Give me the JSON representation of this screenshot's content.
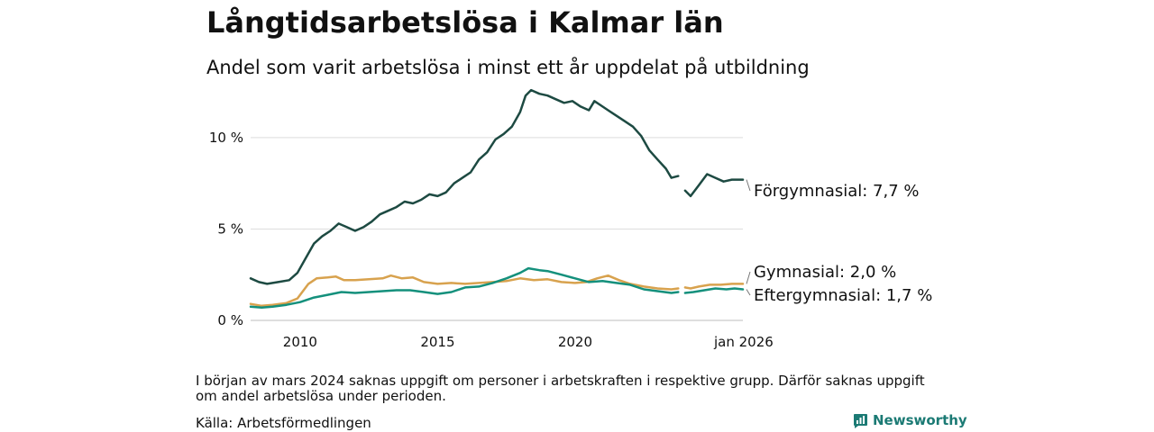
{
  "title": "Långtidsarbetslösa i Kalmar län",
  "subtitle": "Andel som varit arbetslösa i minst ett år uppdelat på utbildning",
  "note": "I början av mars 2024 saknas uppgift om personer i arbetskraften i respektive grupp. Därför saknas uppgift om andel arbetslösa under perioden.",
  "source": "Källa: Arbetsförmedlingen",
  "brand": "Newsworthy",
  "icons": {
    "brand": "newsworthy-logo-icon"
  },
  "chart_data": {
    "type": "line",
    "title": "Långtidsarbetslösa i Kalmar län",
    "xlabel": "",
    "ylabel": "",
    "xlim": [
      2008.2,
      2026.1
    ],
    "ylim": [
      0,
      13
    ],
    "y_ticks": [
      {
        "value": 0,
        "label": "0 %"
      },
      {
        "value": 5,
        "label": "5 %"
      },
      {
        "value": 10,
        "label": "10 %"
      }
    ],
    "x_ticks": [
      {
        "value": 2010,
        "label": "2010"
      },
      {
        "value": 2015,
        "label": "2015"
      },
      {
        "value": 2020,
        "label": "2020"
      },
      {
        "value": 2026.1,
        "label": "jan 2026"
      }
    ],
    "grid": true,
    "gap": [
      2023.75,
      2024.0
    ],
    "series": [
      {
        "name": "Förgymnasial",
        "label": "Förgymnasial: 7,7 %",
        "color": "#1d4a42",
        "points": [
          [
            2008.2,
            2.3
          ],
          [
            2008.5,
            2.1
          ],
          [
            2008.8,
            2.0
          ],
          [
            2009.2,
            2.1
          ],
          [
            2009.6,
            2.2
          ],
          [
            2009.9,
            2.6
          ],
          [
            2010.2,
            3.4
          ],
          [
            2010.5,
            4.2
          ],
          [
            2010.8,
            4.6
          ],
          [
            2011.1,
            4.9
          ],
          [
            2011.4,
            5.3
          ],
          [
            2011.7,
            5.1
          ],
          [
            2012.0,
            4.9
          ],
          [
            2012.3,
            5.1
          ],
          [
            2012.6,
            5.4
          ],
          [
            2012.9,
            5.8
          ],
          [
            2013.2,
            6.0
          ],
          [
            2013.5,
            6.2
          ],
          [
            2013.8,
            6.5
          ],
          [
            2014.1,
            6.4
          ],
          [
            2014.4,
            6.6
          ],
          [
            2014.7,
            6.9
          ],
          [
            2015.0,
            6.8
          ],
          [
            2015.3,
            7.0
          ],
          [
            2015.6,
            7.5
          ],
          [
            2015.9,
            7.8
          ],
          [
            2016.2,
            8.1
          ],
          [
            2016.5,
            8.8
          ],
          [
            2016.8,
            9.2
          ],
          [
            2017.1,
            9.9
          ],
          [
            2017.4,
            10.2
          ],
          [
            2017.7,
            10.6
          ],
          [
            2018.0,
            11.4
          ],
          [
            2018.2,
            12.3
          ],
          [
            2018.4,
            12.6
          ],
          [
            2018.7,
            12.4
          ],
          [
            2019.0,
            12.3
          ],
          [
            2019.3,
            12.1
          ],
          [
            2019.6,
            11.9
          ],
          [
            2019.9,
            12.0
          ],
          [
            2020.2,
            11.7
          ],
          [
            2020.5,
            11.5
          ],
          [
            2020.7,
            12.0
          ],
          [
            2020.9,
            11.8
          ],
          [
            2021.2,
            11.5
          ],
          [
            2021.5,
            11.2
          ],
          [
            2021.8,
            10.9
          ],
          [
            2022.1,
            10.6
          ],
          [
            2022.4,
            10.1
          ],
          [
            2022.7,
            9.3
          ],
          [
            2023.0,
            8.8
          ],
          [
            2023.3,
            8.3
          ],
          [
            2023.5,
            7.8
          ],
          [
            2023.75,
            7.9
          ],
          null,
          [
            2024.0,
            7.1
          ],
          [
            2024.2,
            6.8
          ],
          [
            2024.5,
            7.4
          ],
          [
            2024.8,
            8.0
          ],
          [
            2025.1,
            7.8
          ],
          [
            2025.4,
            7.6
          ],
          [
            2025.7,
            7.7
          ],
          [
            2026.1,
            7.7
          ]
        ]
      },
      {
        "name": "Gymnasial",
        "label": "Gymnasial: 2,0 %",
        "color": "#d8a24e",
        "points": [
          [
            2008.2,
            0.9
          ],
          [
            2008.6,
            0.8
          ],
          [
            2009.0,
            0.85
          ],
          [
            2009.5,
            0.95
          ],
          [
            2009.9,
            1.2
          ],
          [
            2010.3,
            2.0
          ],
          [
            2010.6,
            2.3
          ],
          [
            2011.0,
            2.35
          ],
          [
            2011.3,
            2.4
          ],
          [
            2011.6,
            2.2
          ],
          [
            2012.0,
            2.2
          ],
          [
            2012.5,
            2.25
          ],
          [
            2013.0,
            2.3
          ],
          [
            2013.3,
            2.45
          ],
          [
            2013.7,
            2.3
          ],
          [
            2014.1,
            2.35
          ],
          [
            2014.5,
            2.1
          ],
          [
            2015.0,
            2.0
          ],
          [
            2015.5,
            2.05
          ],
          [
            2016.0,
            2.0
          ],
          [
            2016.5,
            2.05
          ],
          [
            2017.0,
            2.1
          ],
          [
            2017.5,
            2.15
          ],
          [
            2018.0,
            2.3
          ],
          [
            2018.5,
            2.2
          ],
          [
            2019.0,
            2.25
          ],
          [
            2019.5,
            2.1
          ],
          [
            2020.0,
            2.05
          ],
          [
            2020.4,
            2.1
          ],
          [
            2020.8,
            2.3
          ],
          [
            2021.2,
            2.45
          ],
          [
            2021.6,
            2.2
          ],
          [
            2022.0,
            2.0
          ],
          [
            2022.5,
            1.85
          ],
          [
            2023.0,
            1.75
          ],
          [
            2023.5,
            1.7
          ],
          [
            2023.75,
            1.75
          ],
          null,
          [
            2024.0,
            1.8
          ],
          [
            2024.2,
            1.75
          ],
          [
            2024.5,
            1.85
          ],
          [
            2024.9,
            1.95
          ],
          [
            2025.3,
            1.95
          ],
          [
            2025.7,
            2.0
          ],
          [
            2026.1,
            2.0
          ]
        ]
      },
      {
        "name": "Eftergymnasial",
        "label": "Eftergymnasial: 1,7 %",
        "color": "#14907c",
        "points": [
          [
            2008.2,
            0.75
          ],
          [
            2008.6,
            0.7
          ],
          [
            2009.0,
            0.75
          ],
          [
            2009.5,
            0.85
          ],
          [
            2010.0,
            1.0
          ],
          [
            2010.5,
            1.25
          ],
          [
            2011.0,
            1.4
          ],
          [
            2011.5,
            1.55
          ],
          [
            2012.0,
            1.5
          ],
          [
            2012.5,
            1.55
          ],
          [
            2013.0,
            1.6
          ],
          [
            2013.5,
            1.65
          ],
          [
            2014.0,
            1.65
          ],
          [
            2014.5,
            1.55
          ],
          [
            2015.0,
            1.45
          ],
          [
            2015.5,
            1.55
          ],
          [
            2016.0,
            1.8
          ],
          [
            2016.5,
            1.85
          ],
          [
            2017.0,
            2.05
          ],
          [
            2017.5,
            2.3
          ],
          [
            2018.0,
            2.6
          ],
          [
            2018.3,
            2.85
          ],
          [
            2018.7,
            2.75
          ],
          [
            2019.0,
            2.7
          ],
          [
            2019.5,
            2.5
          ],
          [
            2020.0,
            2.3
          ],
          [
            2020.5,
            2.1
          ],
          [
            2021.0,
            2.15
          ],
          [
            2021.5,
            2.05
          ],
          [
            2022.0,
            1.95
          ],
          [
            2022.5,
            1.7
          ],
          [
            2023.0,
            1.6
          ],
          [
            2023.5,
            1.5
          ],
          [
            2023.75,
            1.55
          ],
          null,
          [
            2024.0,
            1.5
          ],
          [
            2024.3,
            1.55
          ],
          [
            2024.7,
            1.65
          ],
          [
            2025.1,
            1.75
          ],
          [
            2025.5,
            1.7
          ],
          [
            2025.8,
            1.75
          ],
          [
            2026.1,
            1.7
          ]
        ]
      }
    ]
  }
}
